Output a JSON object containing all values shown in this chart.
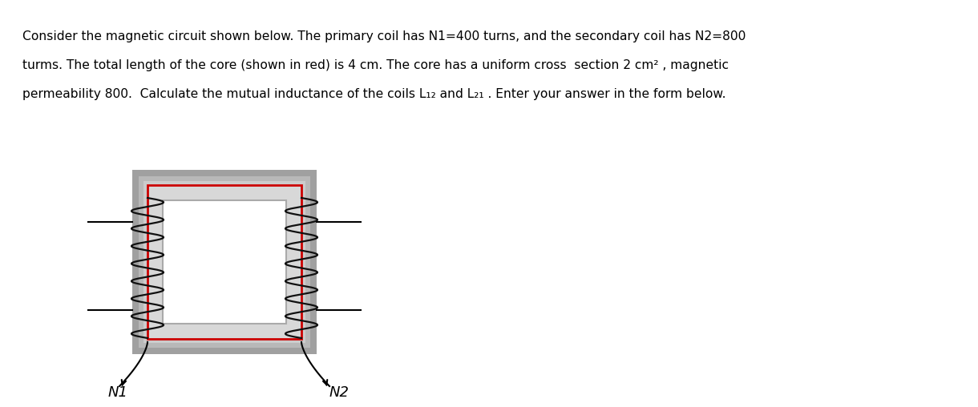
{
  "bg_color": "#ffffff",
  "core_outer_color": "#b0b0b0",
  "core_mid_color": "#cccccc",
  "core_light_color": "#d8d8d8",
  "core_center_color": "#ffffff",
  "red_path_color": "#cc0000",
  "coil_color": "#111111",
  "label_n1": "N1",
  "label_n2": "N2",
  "text_lines": [
    "Consider the magnetic circuit shown below. The primary coil has N1=400 turns, and the secondary coil has N2=800",
    "turms. The total length of the core (shown in red) is 4 cm. The core has a uniform cross  section 2 cm² , magnetic",
    "permeability 800.  Calculate the mutual inductance of the coils L₁₂ and L₂₁ . Enter your answer in the form below."
  ],
  "fig_width": 12.0,
  "fig_height": 4.81
}
